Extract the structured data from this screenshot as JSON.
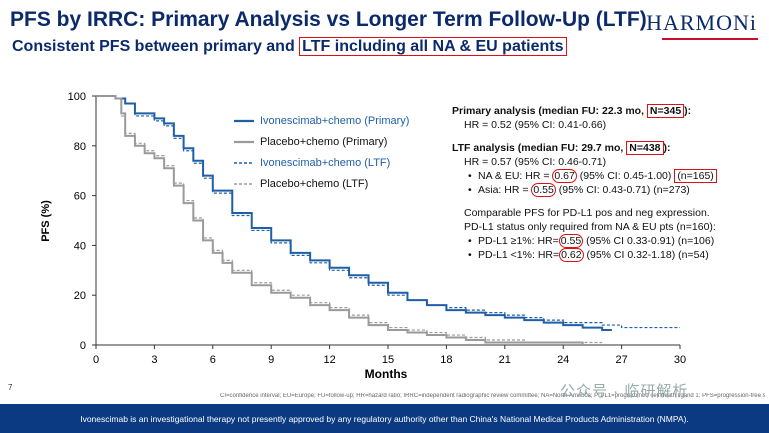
{
  "header": {
    "title": "PFS by IRRC: Primary Analysis vs Longer Term Follow-Up (LTF)",
    "subtitle_pre": "Consistent PFS between primary and ",
    "subtitle_box": "LTF including all NA & EU patients",
    "logo": "HARMONi"
  },
  "chart_data": {
    "type": "line",
    "xlabel": "Months",
    "ylabel": "PFS (%)",
    "xlim": [
      0,
      30
    ],
    "ylim": [
      0,
      100
    ],
    "xticks": [
      0,
      3,
      6,
      9,
      12,
      15,
      18,
      21,
      24,
      27,
      30
    ],
    "yticks": [
      0,
      20,
      40,
      60,
      80,
      100
    ],
    "grid": false,
    "legend_position": "upper-right",
    "series": [
      {
        "name": "Ivonescimab+chemo (Primary)",
        "color": "#1f5fa8",
        "style": "solid",
        "x": [
          0,
          1,
          1.5,
          2,
          3,
          3.5,
          4,
          4.5,
          5,
          5.5,
          6,
          7,
          8,
          9,
          10,
          11,
          12,
          13,
          14,
          15,
          16,
          17,
          18,
          19,
          20,
          21,
          22,
          23,
          24,
          25,
          26,
          26.5
        ],
        "y": [
          100,
          99,
          97,
          93,
          91,
          89,
          84,
          79,
          74,
          68,
          62,
          53,
          47,
          42,
          37,
          34,
          31,
          28,
          25,
          21,
          18,
          16,
          14,
          13,
          12,
          11,
          10,
          9,
          8,
          7,
          6,
          6
        ]
      },
      {
        "name": "Placebo+chemo (Primary)",
        "color": "#9a9a9a",
        "style": "solid",
        "x": [
          0,
          1,
          1.3,
          1.5,
          2,
          2.5,
          3,
          3.5,
          4,
          4.5,
          5,
          5.5,
          6,
          6.5,
          7,
          8,
          9,
          10,
          11,
          12,
          13,
          14,
          15,
          16,
          17,
          18,
          19,
          20,
          21,
          23,
          25,
          26
        ],
        "y": [
          100,
          99,
          93,
          84,
          80,
          77,
          75,
          71,
          64,
          57,
          50,
          42,
          37,
          33,
          29,
          24,
          21,
          19,
          16,
          14,
          11,
          8,
          6,
          5,
          4,
          3,
          2,
          1,
          1,
          1,
          0,
          0
        ]
      },
      {
        "name": "Ivonescimab+chemo (LTF)",
        "color": "#1f5fa8",
        "style": "dashed",
        "x": [
          0,
          1,
          1.5,
          2,
          3,
          3.5,
          4,
          4.5,
          5,
          5.5,
          6,
          7,
          8,
          9,
          10,
          11,
          12,
          13,
          14,
          15,
          16,
          17,
          18,
          19,
          20,
          21,
          22,
          23,
          24,
          25,
          26,
          27,
          28,
          29,
          30
        ],
        "y": [
          100,
          99,
          97,
          92,
          90,
          88,
          83,
          78,
          73,
          67,
          61,
          52,
          46,
          41,
          36,
          33,
          30,
          27,
          24,
          20,
          18,
          16,
          15,
          14,
          13,
          12,
          11,
          10,
          9,
          9,
          8,
          7,
          7,
          7,
          7
        ]
      },
      {
        "name": "Placebo+chemo (LTF)",
        "color": "#9a9a9a",
        "style": "dashed",
        "x": [
          0,
          1,
          1.3,
          1.5,
          2,
          2.5,
          3,
          3.5,
          4,
          4.5,
          5,
          5.5,
          6,
          6.5,
          7,
          8,
          9,
          10,
          11,
          12,
          13,
          14,
          15,
          16,
          17,
          18,
          19,
          20,
          21,
          22,
          24,
          26
        ],
        "y": [
          100,
          99,
          92,
          85,
          81,
          78,
          76,
          72,
          65,
          58,
          51,
          43,
          38,
          34,
          30,
          25,
          22,
          20,
          17,
          15,
          12,
          9,
          7,
          6,
          5,
          4,
          3,
          2,
          2,
          1,
          1,
          1
        ]
      }
    ]
  },
  "notes": {
    "primary_hdr_pre": "Primary analysis (median FU: 22.3 mo, ",
    "primary_hdr_box": "N=345",
    "primary_hdr_post": "):",
    "primary_hr": "HR = 0.52 (95% CI: 0.41-0.66)",
    "ltf_hdr_pre": "LTF analysis (median FU: 29.7 mo, ",
    "ltf_hdr_box": "N=438",
    "ltf_hdr_post": "):",
    "ltf_hr": "HR = 0.57 (95% CI: 0.46-0.71)",
    "naeu_pre": "NA & EU: HR = ",
    "naeu_hr": "0.67",
    "naeu_ci": " (95% CI: 0.45-1.00) ",
    "naeu_n": "(n=165)",
    "asia_pre": "Asia: HR = ",
    "asia_hr": "0.55",
    "asia_post": " (95% CI: 0.43-0.71) (n=273)",
    "pdl1_line1": "Comparable PFS for PD-L1 pos and neg expression.",
    "pdl1_line2": "PD-L1 status only required from NA & EU pts (n=160):",
    "pos_pre": "PD-L1 ≥1%: HR=",
    "pos_hr": "0.55",
    "pos_post": " (95% CI 0.33-0.91) (n=106)",
    "neg_pre": "PD-L1 <1%: HR=",
    "neg_hr": "0.62",
    "neg_post": " (95% CI 0.32-1.18) (n=54)"
  },
  "footer": {
    "page": "7",
    "footnote": "CI=confidence interval; EU=Europe; FU=follow-up; HR=hazard ratio; IRRC=independent radiographic review committee; NA=North America; PD-L1=programmed cell death ligand 1; PFS=progression-free survival",
    "watermark": "公众号 · 临研解析",
    "disclaimer": "Ivonescimab is an investigational therapy not presently approved by any regulatory authority other than China's National Medical Products Administration (NMPA)."
  }
}
